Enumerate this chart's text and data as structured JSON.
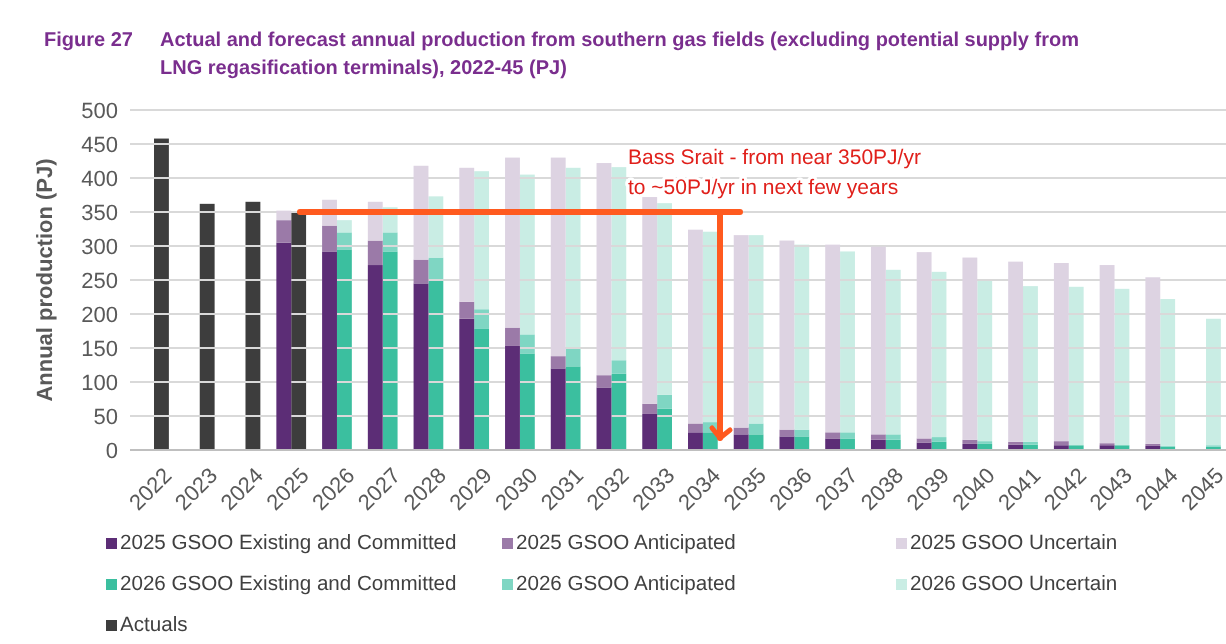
{
  "chart_data": [
    {
      "type": "bar",
      "stacked": true,
      "title": "Actual and forecast annual production from southern gas fields (excluding potential supply from LNG regasification terminals), 2022-45 (PJ)",
      "ylabel": "Annual production (PJ)",
      "categories": [
        "2022",
        "2023",
        "2024",
        "2025",
        "2026",
        "2027",
        "2028",
        "2029",
        "2030",
        "2031",
        "2032",
        "2033",
        "2034",
        "2035",
        "2036",
        "2037",
        "2038",
        "2039",
        "2040",
        "2041",
        "2042",
        "2043",
        "2044",
        "2045"
      ],
      "ylim": [
        0,
        500
      ],
      "yticks": [
        0,
        50,
        100,
        150,
        200,
        250,
        300,
        350,
        400,
        450,
        500
      ],
      "grid": "y",
      "legend": "bottom",
      "series": [
        {
          "name": "2025 GSOO Existing and Committed",
          "color": "#5c2d76",
          "values": [
            null,
            null,
            null,
            305,
            292,
            272,
            245,
            193,
            153,
            120,
            92,
            53,
            26,
            23,
            20,
            17,
            15,
            11,
            9,
            8,
            7,
            7,
            6,
            null
          ]
        },
        {
          "name": "2025 GSOO Anticipated",
          "color": "#9b7aa8",
          "values": [
            null,
            null,
            null,
            33,
            38,
            36,
            35,
            25,
            27,
            18,
            18,
            15,
            13,
            10,
            10,
            9,
            8,
            6,
            6,
            4,
            6,
            3,
            3,
            null
          ]
        },
        {
          "name": "2025 GSOO Uncertain",
          "color": "#ddd3e2",
          "values": [
            null,
            null,
            null,
            14,
            38,
            57,
            138,
            197,
            250,
            292,
            312,
            304,
            285,
            283,
            278,
            276,
            276,
            274,
            268,
            265,
            262,
            262,
            245,
            null
          ]
        }
      ],
      "annotations": [
        "Figure 27",
        "Bass Srait - from near 350PJ/yr to ~50PJ/yr in next few years"
      ]
    },
    {
      "type": "bar",
      "stacked": true,
      "categories": [
        "2022",
        "2023",
        "2024",
        "2025",
        "2026",
        "2027",
        "2028",
        "2029",
        "2030",
        "2031",
        "2032",
        "2033",
        "2034",
        "2035",
        "2036",
        "2037",
        "2038",
        "2039",
        "2040",
        "2041",
        "2042",
        "2043",
        "2044",
        "2045"
      ],
      "ylim": [
        0,
        500
      ],
      "tick_labels": false,
      "legend": "bottom",
      "series": [
        {
          "name": "2026 GSOO Existing and Committed",
          "color": "#3bbf9f",
          "values": [
            null,
            null,
            null,
            null,
            295,
            292,
            250,
            178,
            142,
            123,
            112,
            61,
            26,
            23,
            20,
            17,
            15,
            12,
            9,
            8,
            7,
            7,
            5,
            5
          ]
        },
        {
          "name": "2026 GSOO Anticipated",
          "color": "#7fd6c3",
          "values": [
            null,
            null,
            null,
            null,
            25,
            28,
            33,
            29,
            28,
            27,
            20,
            20,
            15,
            16,
            10,
            9,
            8,
            7,
            4,
            4,
            null,
            null,
            1,
            2
          ]
        },
        {
          "name": "2026 GSOO Uncertain",
          "color": "#c9ede4",
          "values": [
            null,
            null,
            null,
            null,
            18,
            37,
            90,
            203,
            235,
            265,
            284,
            282,
            280,
            277,
            272,
            266,
            242,
            243,
            238,
            229,
            233,
            230,
            216,
            186
          ]
        },
        {
          "name": "Actuals",
          "color": "#3d3d3d",
          "values": [
            458,
            362,
            365,
            350,
            null,
            null,
            null,
            null,
            null,
            null,
            null,
            null,
            null,
            null,
            null,
            null,
            null,
            null,
            null,
            null,
            null,
            null,
            null,
            null
          ]
        }
      ]
    }
  ]
}
